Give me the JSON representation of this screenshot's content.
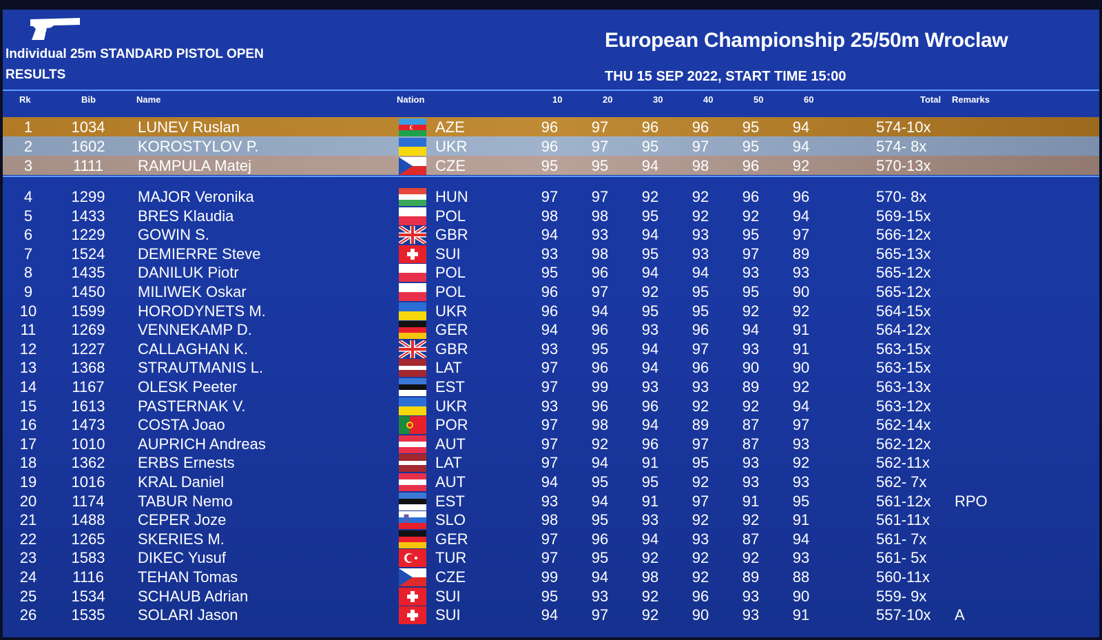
{
  "header": {
    "event": "Individual 25m STANDARD PISTOL OPEN",
    "section": "RESULTS",
    "championship": "European Championship 25/50m Wroclaw",
    "date": "THU 15 SEP 2022, START TIME 15:00",
    "icon": "pistol-icon"
  },
  "columns": {
    "rk": "Rk",
    "bib": "Bib",
    "name": "Name",
    "nation": "Nation",
    "s10": "10",
    "s20": "20",
    "s30": "30",
    "s40": "40",
    "s50": "50",
    "s60": "60",
    "total": "Total",
    "remarks": "Remarks"
  },
  "colors": {
    "background": "#1b3aa6",
    "gold": "#c18b35",
    "silver": "#a0b3cc",
    "bronze": "#b8a29a",
    "separator": "#5d9cff"
  },
  "rows": [
    {
      "rk": "1",
      "bib": "1034",
      "name": "LUNEV Ruslan",
      "nation": "AZE",
      "s": [
        "96",
        "97",
        "96",
        "96",
        "95",
        "94"
      ],
      "total": "574-10x",
      "remarks": "",
      "flag": "AZE",
      "medal": "gold"
    },
    {
      "rk": "2",
      "bib": "1602",
      "name": "KOROSTYLOV P.",
      "nation": "UKR",
      "s": [
        "96",
        "97",
        "95",
        "97",
        "95",
        "94"
      ],
      "total": "574- 8x",
      "remarks": "",
      "flag": "UKR",
      "medal": "silver"
    },
    {
      "rk": "3",
      "bib": "1111",
      "name": "RAMPULA Matej",
      "nation": "CZE",
      "s": [
        "95",
        "95",
        "94",
        "98",
        "96",
        "92"
      ],
      "total": "570-13x",
      "remarks": "",
      "flag": "CZE",
      "medal": "bronze"
    },
    {
      "rk": "4",
      "bib": "1299",
      "name": "MAJOR Veronika",
      "nation": "HUN",
      "s": [
        "97",
        "97",
        "92",
        "92",
        "96",
        "96"
      ],
      "total": "570- 8x",
      "remarks": "",
      "flag": "HUN"
    },
    {
      "rk": "5",
      "bib": "1433",
      "name": "BRES Klaudia",
      "nation": "POL",
      "s": [
        "98",
        "98",
        "95",
        "92",
        "92",
        "94"
      ],
      "total": "569-15x",
      "remarks": "",
      "flag": "POL"
    },
    {
      "rk": "6",
      "bib": "1229",
      "name": "GOWIN S.",
      "nation": "GBR",
      "s": [
        "94",
        "93",
        "94",
        "93",
        "95",
        "97"
      ],
      "total": "566-12x",
      "remarks": "",
      "flag": "GBR"
    },
    {
      "rk": "7",
      "bib": "1524",
      "name": "DEMIERRE Steve",
      "nation": "SUI",
      "s": [
        "93",
        "98",
        "95",
        "93",
        "97",
        "89"
      ],
      "total": "565-13x",
      "remarks": "",
      "flag": "SUI"
    },
    {
      "rk": "8",
      "bib": "1435",
      "name": "DANILUK Piotr",
      "nation": "POL",
      "s": [
        "95",
        "96",
        "94",
        "94",
        "93",
        "93"
      ],
      "total": "565-12x",
      "remarks": "",
      "flag": "POL"
    },
    {
      "rk": "9",
      "bib": "1450",
      "name": "MILIWEK Oskar",
      "nation": "POL",
      "s": [
        "96",
        "97",
        "92",
        "95",
        "95",
        "90"
      ],
      "total": "565-12x",
      "remarks": "",
      "flag": "POL"
    },
    {
      "rk": "10",
      "bib": "1599",
      "name": "HORODYNETS M.",
      "nation": "UKR",
      "s": [
        "96",
        "94",
        "95",
        "95",
        "92",
        "92"
      ],
      "total": "564-15x",
      "remarks": "",
      "flag": "UKR"
    },
    {
      "rk": "11",
      "bib": "1269",
      "name": "VENNEKAMP D.",
      "nation": "GER",
      "s": [
        "94",
        "96",
        "93",
        "96",
        "94",
        "91"
      ],
      "total": "564-12x",
      "remarks": "",
      "flag": "GER"
    },
    {
      "rk": "12",
      "bib": "1227",
      "name": "CALLAGHAN K.",
      "nation": "GBR",
      "s": [
        "93",
        "95",
        "94",
        "97",
        "93",
        "91"
      ],
      "total": "563-15x",
      "remarks": "",
      "flag": "GBR"
    },
    {
      "rk": "13",
      "bib": "1368",
      "name": "STRAUTMANIS L.",
      "nation": "LAT",
      "s": [
        "97",
        "96",
        "94",
        "96",
        "90",
        "90"
      ],
      "total": "563-15x",
      "remarks": "",
      "flag": "LAT"
    },
    {
      "rk": "14",
      "bib": "1167",
      "name": "OLESK Peeter",
      "nation": "EST",
      "s": [
        "97",
        "99",
        "93",
        "93",
        "89",
        "92"
      ],
      "total": "563-13x",
      "remarks": "",
      "flag": "EST"
    },
    {
      "rk": "15",
      "bib": "1613",
      "name": "PASTERNAK V.",
      "nation": "UKR",
      "s": [
        "93",
        "96",
        "96",
        "92",
        "92",
        "94"
      ],
      "total": "563-12x",
      "remarks": "",
      "flag": "UKR"
    },
    {
      "rk": "16",
      "bib": "1473",
      "name": "COSTA Joao",
      "nation": "POR",
      "s": [
        "97",
        "98",
        "94",
        "89",
        "87",
        "97"
      ],
      "total": "562-14x",
      "remarks": "",
      "flag": "POR"
    },
    {
      "rk": "17",
      "bib": "1010",
      "name": "AUPRICH Andreas",
      "nation": "AUT",
      "s": [
        "97",
        "92",
        "96",
        "97",
        "87",
        "93"
      ],
      "total": "562-12x",
      "remarks": "",
      "flag": "AUT"
    },
    {
      "rk": "18",
      "bib": "1362",
      "name": "ERBS Ernests",
      "nation": "LAT",
      "s": [
        "97",
        "94",
        "91",
        "95",
        "93",
        "92"
      ],
      "total": "562-11x",
      "remarks": "",
      "flag": "LAT"
    },
    {
      "rk": "19",
      "bib": "1016",
      "name": "KRAL Daniel",
      "nation": "AUT",
      "s": [
        "94",
        "95",
        "95",
        "92",
        "93",
        "93"
      ],
      "total": "562- 7x",
      "remarks": "",
      "flag": "AUT"
    },
    {
      "rk": "20",
      "bib": "1174",
      "name": "TABUR Nemo",
      "nation": "EST",
      "s": [
        "93",
        "94",
        "91",
        "97",
        "91",
        "95"
      ],
      "total": "561-12x",
      "remarks": "RPO",
      "flag": "EST"
    },
    {
      "rk": "21",
      "bib": "1488",
      "name": "CEPER Joze",
      "nation": "SLO",
      "s": [
        "98",
        "95",
        "93",
        "92",
        "92",
        "91"
      ],
      "total": "561-11x",
      "remarks": "",
      "flag": "SLO"
    },
    {
      "rk": "22",
      "bib": "1265",
      "name": "SKERIES M.",
      "nation": "GER",
      "s": [
        "97",
        "96",
        "94",
        "93",
        "87",
        "94"
      ],
      "total": "561- 7x",
      "remarks": "",
      "flag": "GER"
    },
    {
      "rk": "23",
      "bib": "1583",
      "name": "DIKEC Yusuf",
      "nation": "TUR",
      "s": [
        "97",
        "95",
        "92",
        "92",
        "92",
        "93"
      ],
      "total": "561- 5x",
      "remarks": "",
      "flag": "TUR"
    },
    {
      "rk": "24",
      "bib": "1116",
      "name": "TEHAN Tomas",
      "nation": "CZE",
      "s": [
        "99",
        "94",
        "98",
        "92",
        "89",
        "88"
      ],
      "total": "560-11x",
      "remarks": "",
      "flag": "CZE"
    },
    {
      "rk": "25",
      "bib": "1534",
      "name": "SCHAUB Adrian",
      "nation": "SUI",
      "s": [
        "95",
        "93",
        "92",
        "96",
        "93",
        "90"
      ],
      "total": "559- 9x",
      "remarks": "",
      "flag": "SUI"
    },
    {
      "rk": "26",
      "bib": "1535",
      "name": "SOLARI Jason",
      "nation": "SUI",
      "s": [
        "94",
        "97",
        "92",
        "90",
        "93",
        "91"
      ],
      "total": "557-10x",
      "remarks": "A",
      "flag": "SUI"
    }
  ]
}
